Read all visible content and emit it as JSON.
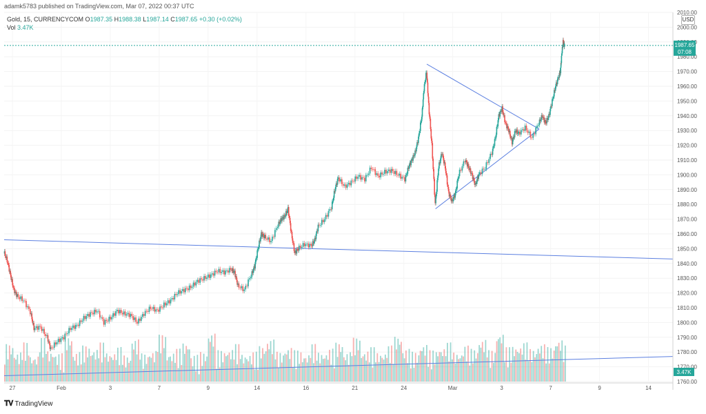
{
  "header": {
    "published": "adamk5783 published on TradingView.com, Mar 07, 2022 00:37 UTC"
  },
  "legend": {
    "symbol": "Gold, 15, CURRENCYCOM",
    "open_label": "O",
    "open": "1987.35",
    "high_label": "H",
    "high": "1988.38",
    "low_label": "L",
    "low": "1987.14",
    "close_label": "C",
    "close": "1987.65",
    "change": "+0.30 (+0.02%)",
    "vol_label": "Vol",
    "vol_value": "3.47K"
  },
  "currency": "USD",
  "price_tag": {
    "price": "1987.65",
    "countdown": "07:08"
  },
  "volume_tag": "3.47K",
  "footer": {
    "logo_text": "TradingView",
    "logo_icon": "tradingview-logo-icon"
  },
  "colors": {
    "up": "#26a69a",
    "down": "#ef5350",
    "trendline": "#5b7fe0",
    "price_line": "#26a69a"
  },
  "chart_data": {
    "type": "candlestick",
    "symbol": "Gold",
    "interval": "15",
    "ylim": [
      1760,
      2010
    ],
    "y_ticks": [
      1760,
      1770,
      1780,
      1790,
      1800,
      1810,
      1820,
      1830,
      1840,
      1850,
      1860,
      1870,
      1880,
      1890,
      1900,
      1910,
      1920,
      1930,
      1940,
      1950,
      1960,
      1970,
      1980,
      1990,
      2000,
      2010
    ],
    "x_ticks": [
      "27",
      "Feb",
      "3",
      "7",
      "9",
      "14",
      "16",
      "21",
      "24",
      "Mar",
      "3",
      "7",
      "9",
      "14"
    ],
    "price_path": [
      [
        0,
        1848
      ],
      [
        0.005,
        1842
      ],
      [
        0.01,
        1832
      ],
      [
        0.015,
        1822
      ],
      [
        0.02,
        1818
      ],
      [
        0.03,
        1815
      ],
      [
        0.04,
        1807
      ],
      [
        0.045,
        1796
      ],
      [
        0.055,
        1797
      ],
      [
        0.065,
        1790
      ],
      [
        0.07,
        1782
      ],
      [
        0.08,
        1787
      ],
      [
        0.09,
        1790
      ],
      [
        0.1,
        1796
      ],
      [
        0.11,
        1798
      ],
      [
        0.12,
        1803
      ],
      [
        0.13,
        1806
      ],
      [
        0.14,
        1808
      ],
      [
        0.15,
        1800
      ],
      [
        0.16,
        1803
      ],
      [
        0.17,
        1808
      ],
      [
        0.18,
        1806
      ],
      [
        0.19,
        1805
      ],
      [
        0.2,
        1800
      ],
      [
        0.21,
        1806
      ],
      [
        0.22,
        1810
      ],
      [
        0.23,
        1808
      ],
      [
        0.24,
        1812
      ],
      [
        0.25,
        1815
      ],
      [
        0.26,
        1820
      ],
      [
        0.27,
        1822
      ],
      [
        0.28,
        1824
      ],
      [
        0.29,
        1828
      ],
      [
        0.3,
        1830
      ],
      [
        0.31,
        1832
      ],
      [
        0.32,
        1835
      ],
      [
        0.33,
        1834
      ],
      [
        0.34,
        1836
      ],
      [
        0.345,
        1834
      ],
      [
        0.35,
        1825
      ],
      [
        0.36,
        1822
      ],
      [
        0.37,
        1832
      ],
      [
        0.375,
        1838
      ],
      [
        0.38,
        1850
      ],
      [
        0.385,
        1860
      ],
      [
        0.39,
        1858
      ],
      [
        0.4,
        1855
      ],
      [
        0.41,
        1866
      ],
      [
        0.415,
        1870
      ],
      [
        0.42,
        1872
      ],
      [
        0.425,
        1877
      ],
      [
        0.43,
        1860
      ],
      [
        0.435,
        1847
      ],
      [
        0.44,
        1850
      ],
      [
        0.45,
        1853
      ],
      [
        0.46,
        1852
      ],
      [
        0.465,
        1856
      ],
      [
        0.47,
        1865
      ],
      [
        0.48,
        1870
      ],
      [
        0.49,
        1878
      ],
      [
        0.495,
        1890
      ],
      [
        0.5,
        1898
      ],
      [
        0.51,
        1892
      ],
      [
        0.52,
        1895
      ],
      [
        0.53,
        1899
      ],
      [
        0.54,
        1897
      ],
      [
        0.55,
        1905
      ],
      [
        0.56,
        1899
      ],
      [
        0.57,
        1902
      ],
      [
        0.58,
        1903
      ],
      [
        0.59,
        1900
      ],
      [
        0.6,
        1897
      ],
      [
        0.605,
        1905
      ],
      [
        0.61,
        1910
      ],
      [
        0.615,
        1915
      ],
      [
        0.62,
        1925
      ],
      [
        0.625,
        1940
      ],
      [
        0.628,
        1958
      ],
      [
        0.632,
        1970
      ],
      [
        0.635,
        1948
      ],
      [
        0.64,
        1920
      ],
      [
        0.645,
        1880
      ],
      [
        0.65,
        1905
      ],
      [
        0.655,
        1915
      ],
      [
        0.66,
        1905
      ],
      [
        0.665,
        1888
      ],
      [
        0.67,
        1882
      ],
      [
        0.675,
        1887
      ],
      [
        0.68,
        1900
      ],
      [
        0.69,
        1910
      ],
      [
        0.695,
        1905
      ],
      [
        0.7,
        1900
      ],
      [
        0.705,
        1893
      ],
      [
        0.71,
        1900
      ],
      [
        0.72,
        1905
      ],
      [
        0.73,
        1915
      ],
      [
        0.735,
        1925
      ],
      [
        0.74,
        1940
      ],
      [
        0.745,
        1945
      ],
      [
        0.75,
        1935
      ],
      [
        0.755,
        1930
      ],
      [
        0.76,
        1922
      ],
      [
        0.765,
        1930
      ],
      [
        0.77,
        1928
      ],
      [
        0.78,
        1932
      ],
      [
        0.79,
        1925
      ],
      [
        0.8,
        1935
      ],
      [
        0.805,
        1940
      ],
      [
        0.81,
        1935
      ],
      [
        0.815,
        1940
      ],
      [
        0.82,
        1950
      ],
      [
        0.825,
        1960
      ],
      [
        0.83,
        1967
      ],
      [
        0.832,
        1970
      ],
      [
        0.834,
        1982
      ],
      [
        0.836,
        1990
      ],
      [
        0.838,
        1987.65
      ]
    ],
    "volume_path": [
      0.55,
      0.3,
      0.6,
      0.2,
      0.75,
      0.35,
      0.25,
      0.8,
      0.3,
      0.5,
      0.4,
      0.6,
      0.3,
      0.45,
      0.2,
      0.7,
      0.25,
      0.35,
      0.85,
      0.3,
      0.4,
      0.6,
      0.2,
      0.3,
      0.9,
      0.35,
      0.4,
      0.55,
      0.25,
      0.3,
      0.5,
      0.7,
      0.3,
      0.45,
      0.35,
      0.25,
      0.55,
      0.3,
      0.4,
      0.6,
      0.3,
      0.75,
      0.35,
      0.45,
      0.3,
      0.5,
      0.8,
      0.4,
      0.3,
      0.55,
      0.35,
      0.45,
      0.6,
      0.3,
      0.5,
      0.4,
      0.7,
      0.35,
      0.9,
      0.45,
      0.5,
      0.6,
      0.4,
      0.55,
      0.45,
      0.7,
      0.5,
      0.85,
      0.6,
      0.55,
      0.65,
      0.5,
      0.75,
      0.6,
      0.95,
      0.7,
      0.6,
      0.8,
      0.65,
      0.7
    ],
    "trendlines": [
      {
        "from": [
          0,
          1856
        ],
        "to": [
          1,
          1843
        ]
      },
      {
        "from": [
          0,
          1764
        ],
        "to": [
          1,
          1777
        ]
      },
      {
        "from": [
          0.632,
          1975
        ],
        "to": [
          0.8,
          1931
        ]
      },
      {
        "from": [
          0.645,
          1877
        ],
        "to": [
          0.8,
          1931
        ]
      }
    ],
    "last_price": 1987.65
  }
}
